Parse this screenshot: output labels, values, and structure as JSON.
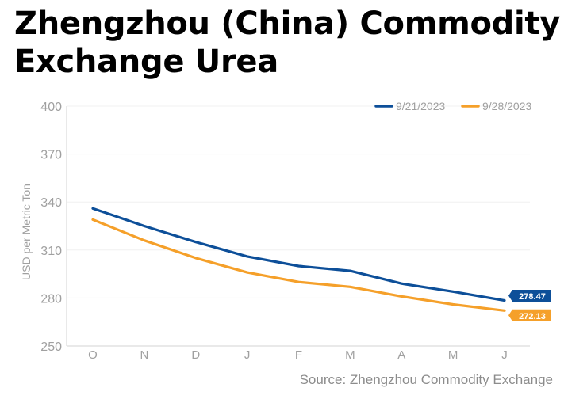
{
  "colors": {
    "series_1": "#0d4f99",
    "series_2": "#f5a02a",
    "axis": "#e2e2e2",
    "grid": "#f0f0f0",
    "tick_text": "#a0a0a0",
    "label_text": "#ffffff"
  },
  "chart_data": {
    "type": "line",
    "title": "Zhengzhou (China) Commodity Exchange Urea",
    "xlabel": "",
    "ylabel": "USD per Metric Ton",
    "categories": [
      "O",
      "N",
      "D",
      "J",
      "F",
      "M",
      "A",
      "M",
      "J"
    ],
    "series": [
      {
        "name": "9/21/2023",
        "values": [
          336,
          325,
          315,
          306,
          300,
          297,
          289,
          284,
          278.47
        ]
      },
      {
        "name": "9/28/2023",
        "values": [
          329,
          316,
          305,
          296,
          290,
          287,
          281,
          276,
          272.13
        ]
      }
    ],
    "end_labels": [
      "278.47",
      "272.13"
    ],
    "ylim": [
      250,
      400
    ],
    "yticks": [
      250,
      280,
      310,
      340,
      370,
      400
    ],
    "ytick_labels": [
      "250",
      "280",
      "310",
      "340",
      "370",
      "400"
    ],
    "legend": "top-right",
    "grid": true
  },
  "source": "Source: Zhengzhou Commodity Exchange"
}
